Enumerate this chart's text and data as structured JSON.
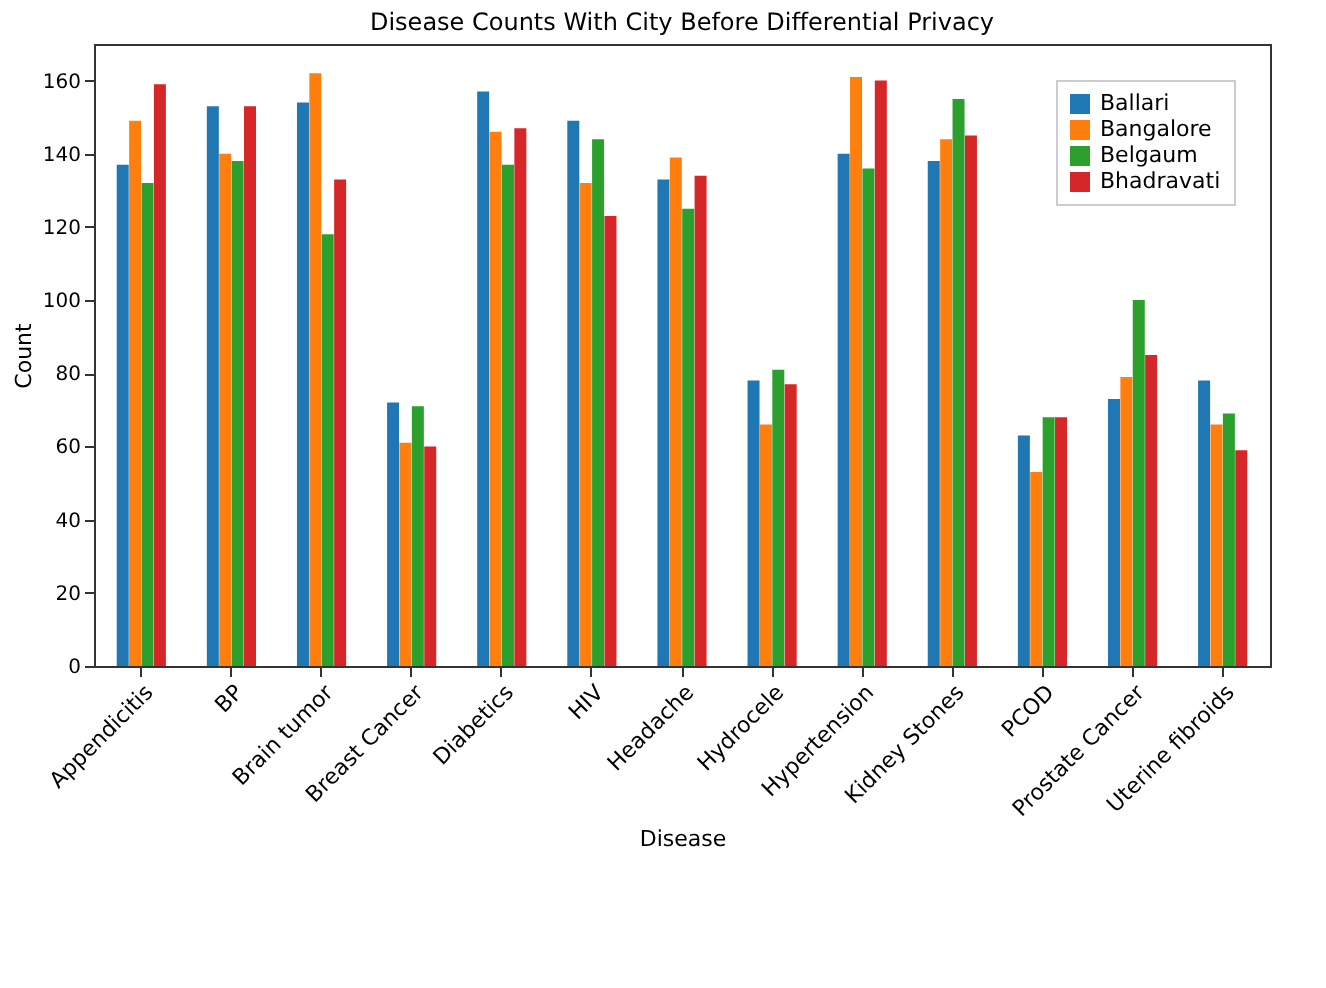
{
  "chart_data": {
    "type": "bar",
    "title": "Disease Counts With City Before Differential Privacy",
    "xlabel": "Disease",
    "ylabel": "Count",
    "categories": [
      "Appendicitis",
      "BP",
      "Brain tumor",
      "Breast Cancer",
      "Diabetics",
      "HIV",
      "Headache",
      "Hydrocele",
      "Hypertension",
      "Kidney Stones",
      "PCOD",
      "Prostate Cancer",
      "Uterine fibroids"
    ],
    "series": [
      {
        "name": "Ballari",
        "color": "#1f77b4",
        "values": [
          137,
          153,
          154,
          72,
          157,
          149,
          133,
          78,
          140,
          138,
          63,
          73,
          78
        ]
      },
      {
        "name": "Bangalore",
        "color": "#ff7f0e",
        "values": [
          149,
          140,
          162,
          61,
          146,
          132,
          139,
          66,
          161,
          144,
          53,
          79,
          66
        ]
      },
      {
        "name": "Belgaum",
        "color": "#2ca02c",
        "values": [
          132,
          138,
          118,
          71,
          137,
          144,
          125,
          81,
          136,
          155,
          68,
          100,
          69
        ]
      },
      {
        "name": "Bhadravati",
        "color": "#d62728",
        "values": [
          159,
          153,
          133,
          60,
          147,
          123,
          134,
          77,
          160,
          145,
          68,
          85,
          59
        ]
      }
    ],
    "ylim": [
      0,
      170
    ],
    "yticks": [
      0,
      20,
      40,
      60,
      80,
      100,
      120,
      140,
      160
    ],
    "grid": false,
    "legend": "top right"
  }
}
